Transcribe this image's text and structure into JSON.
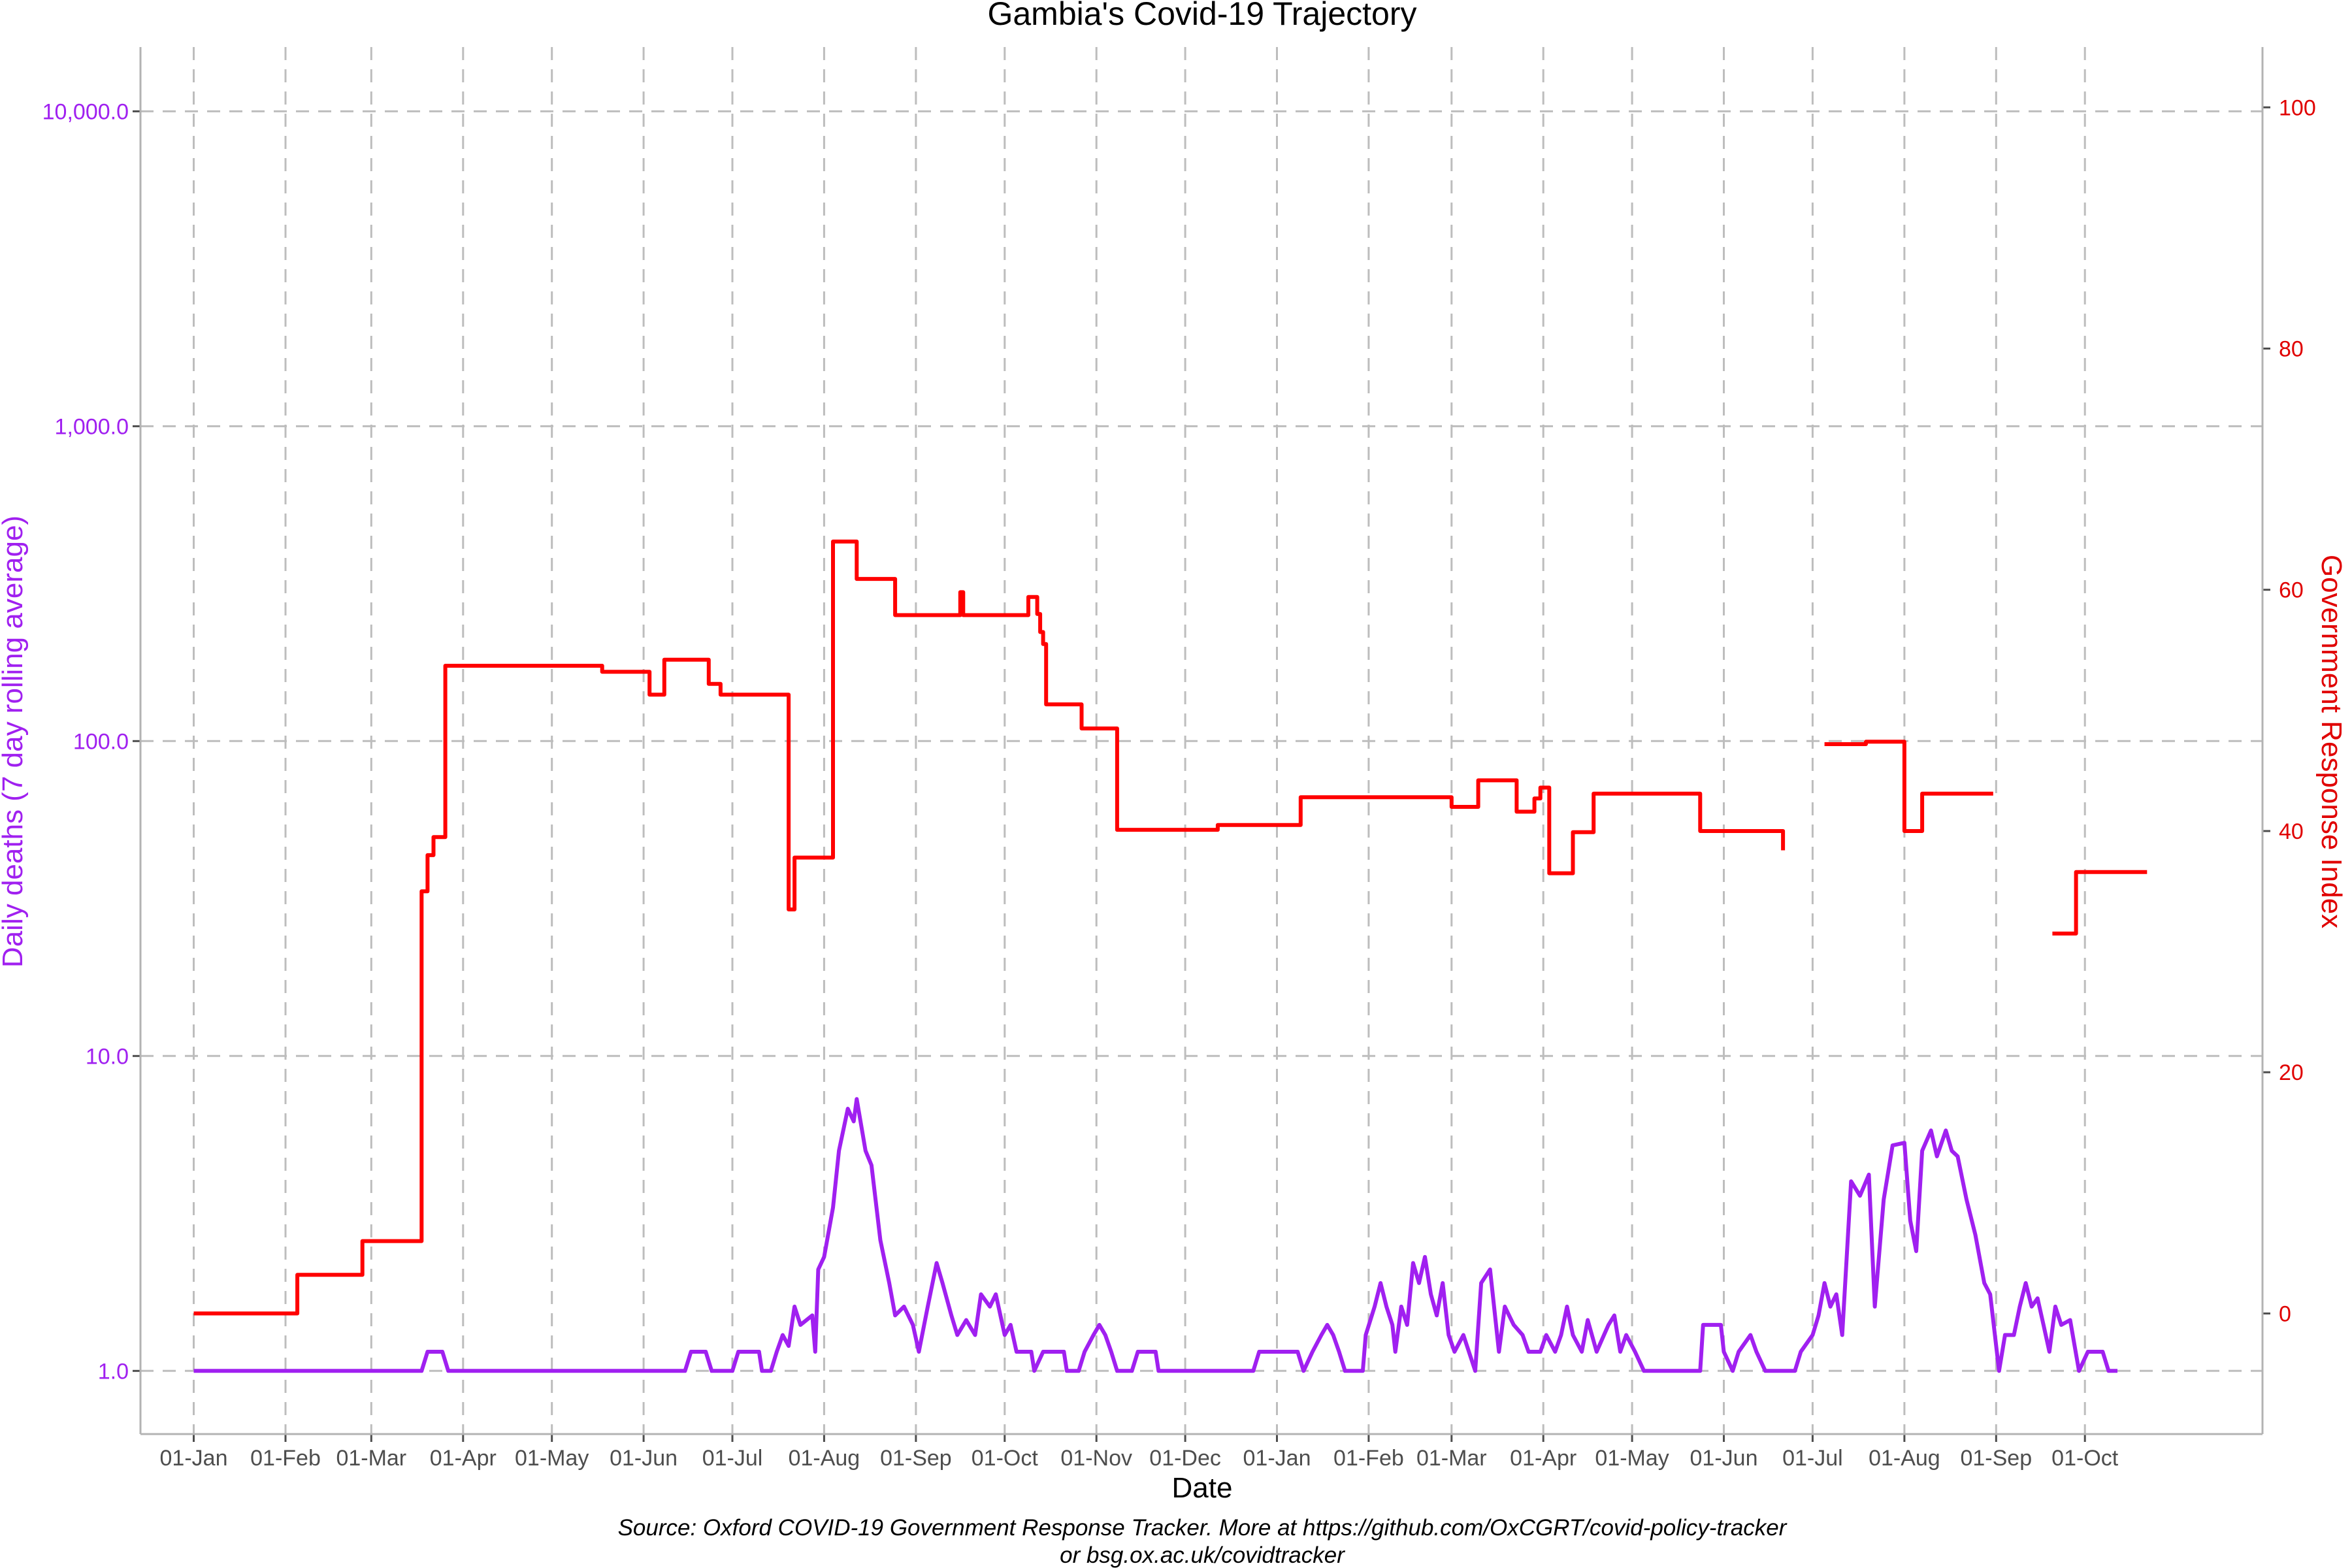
{
  "chart_data": {
    "type": "line",
    "title": "Gambia's Covid-19 Trajectory",
    "xlabel": "Date",
    "ylabel_left": "Daily deaths (7 day rolling average)",
    "ylabel_right": "Government Response Index",
    "caption_line1": "Source: Oxford COVID-19 Government Response Tracker. More at https://github.com/OxCGRT/covid-policy-tracker",
    "caption_line2": "or bsg.ox.ac.uk/covidtracker",
    "x_ticks": [
      "01-Jan",
      "01-Feb",
      "01-Mar",
      "01-Apr",
      "01-May",
      "01-Jun",
      "01-Jul",
      "01-Aug",
      "01-Sep",
      "01-Oct",
      "01-Nov",
      "01-Dec",
      "01-Jan",
      "01-Feb",
      "01-Mar",
      "01-Apr",
      "01-May",
      "01-Jun",
      "01-Jul",
      "01-Aug",
      "01-Sep",
      "01-Oct"
    ],
    "x_tick_dates": [
      "2020-01-01",
      "2020-02-01",
      "2020-03-01",
      "2020-04-01",
      "2020-05-01",
      "2020-06-01",
      "2020-07-01",
      "2020-08-01",
      "2020-09-01",
      "2020-10-01",
      "2020-11-01",
      "2020-12-01",
      "2021-01-01",
      "2021-02-01",
      "2021-03-01",
      "2021-04-01",
      "2021-05-01",
      "2021-06-01",
      "2021-07-01",
      "2021-08-01",
      "2021-09-01",
      "2021-10-01"
    ],
    "xlim": [
      "2019-12-14",
      "2021-11-30"
    ],
    "y_left": {
      "scale": "log10",
      "ticks": [
        1,
        10,
        100,
        1000,
        10000
      ],
      "tick_labels": [
        "1.0",
        "10.0",
        "100.0",
        "1,000.0",
        "10,000.0"
      ],
      "lim": [
        0.63,
        16000
      ]
    },
    "y_right": {
      "scale": "linear",
      "ticks": [
        0,
        20,
        40,
        60,
        80,
        100
      ],
      "tick_labels": [
        "0",
        "20",
        "40",
        "60",
        "80",
        "100"
      ],
      "lim": [
        -10,
        105
      ]
    },
    "grid": true,
    "colors": {
      "deaths": "#a020f0",
      "response": "#ff0000",
      "grid": "#bdbdbd",
      "axis": "#b3b3b3"
    },
    "series": [
      {
        "axis": "right",
        "type": "step",
        "color": "#ff0000",
        "points": [
          [
            "2020-01-01",
            0
          ],
          [
            "2020-02-05",
            3.2
          ],
          [
            "2020-02-27",
            6.0
          ],
          [
            "2020-03-18",
            35
          ],
          [
            "2020-03-20",
            38
          ],
          [
            "2020-03-22",
            39.5
          ],
          [
            "2020-03-26",
            53.7
          ],
          [
            "2020-05-18",
            53.2
          ],
          [
            "2020-06-03",
            51.3
          ],
          [
            "2020-06-08",
            54.2
          ],
          [
            "2020-06-23",
            52.2
          ],
          [
            "2020-06-27",
            51.3
          ],
          [
            "2020-07-20",
            33.5
          ],
          [
            "2020-07-22",
            37.8
          ],
          [
            "2020-08-04",
            64
          ],
          [
            "2020-08-12",
            60.9
          ],
          [
            "2020-08-25",
            57.9
          ],
          [
            "2020-09-16",
            59.8
          ],
          [
            "2020-09-17",
            57.9
          ],
          [
            "2020-10-09",
            59.4
          ],
          [
            "2020-10-12",
            58
          ],
          [
            "2020-10-13",
            56.5
          ],
          [
            "2020-10-14",
            55.5
          ],
          [
            "2020-10-15",
            50.5
          ],
          [
            "2020-10-27",
            48.5
          ],
          [
            "2020-11-08",
            40.1
          ],
          [
            "2020-12-12",
            40.5
          ],
          [
            "2021-01-09",
            42.8
          ],
          [
            "2021-03-01",
            42.0
          ],
          [
            "2021-03-10",
            44.2
          ],
          [
            "2021-03-23",
            41.6
          ],
          [
            "2021-03-29",
            42.7
          ],
          [
            "2021-03-31",
            43.6
          ],
          [
            "2021-04-03",
            36.5
          ],
          [
            "2021-04-11",
            39.9
          ],
          [
            "2021-04-18",
            43.1
          ],
          [
            "2021-05-24",
            40.0
          ],
          [
            "2021-06-21",
            38.4
          ],
          null,
          [
            "2021-07-05",
            47.2
          ],
          [
            "2021-07-19",
            47.4
          ],
          [
            "2021-08-01",
            40.0
          ],
          [
            "2021-08-07",
            43.1
          ],
          [
            "2021-08-31",
            43.1
          ],
          null,
          [
            "2021-09-20",
            31.5
          ],
          [
            "2021-09-28",
            36.6
          ],
          [
            "2021-10-22",
            36.6
          ]
        ]
      },
      {
        "axis": "left",
        "type": "line",
        "color": "#a020f0",
        "points": [
          [
            "2020-01-01",
            1.0
          ],
          [
            "2020-03-18",
            1.0
          ],
          [
            "2020-03-20",
            1.15
          ],
          [
            "2020-03-25",
            1.15
          ],
          [
            "2020-03-27",
            1.0
          ],
          [
            "2020-06-15",
            1.0
          ],
          [
            "2020-06-17",
            1.15
          ],
          [
            "2020-06-22",
            1.15
          ],
          [
            "2020-06-24",
            1.0
          ],
          [
            "2020-07-01",
            1.0
          ],
          [
            "2020-07-03",
            1.15
          ],
          [
            "2020-07-10",
            1.15
          ],
          [
            "2020-07-11",
            1.0
          ],
          [
            "2020-07-14",
            1.0
          ],
          [
            "2020-07-16",
            1.15
          ],
          [
            "2020-07-18",
            1.3
          ],
          [
            "2020-07-20",
            1.2
          ],
          [
            "2020-07-22",
            1.6
          ],
          [
            "2020-07-24",
            1.4
          ],
          [
            "2020-07-28",
            1.5
          ],
          [
            "2020-07-29",
            1.15
          ],
          [
            "2020-07-30",
            2.1
          ],
          [
            "2020-08-01",
            2.3
          ],
          [
            "2020-08-04",
            3.3
          ],
          [
            "2020-08-06",
            5.0
          ],
          [
            "2020-08-09",
            6.8
          ],
          [
            "2020-08-11",
            6.2
          ],
          [
            "2020-08-12",
            7.3
          ],
          [
            "2020-08-15",
            5.0
          ],
          [
            "2020-08-17",
            4.5
          ],
          [
            "2020-08-20",
            2.6
          ],
          [
            "2020-08-23",
            1.9
          ],
          [
            "2020-08-25",
            1.5
          ],
          [
            "2020-08-28",
            1.6
          ],
          [
            "2020-08-31",
            1.4
          ],
          [
            "2020-09-02",
            1.15
          ],
          [
            "2020-09-05",
            1.6
          ],
          [
            "2020-09-08",
            2.2
          ],
          [
            "2020-09-10",
            1.9
          ],
          [
            "2020-09-13",
            1.5
          ],
          [
            "2020-09-15",
            1.3
          ],
          [
            "2020-09-18",
            1.45
          ],
          [
            "2020-09-21",
            1.3
          ],
          [
            "2020-09-23",
            1.75
          ],
          [
            "2020-09-26",
            1.6
          ],
          [
            "2020-09-28",
            1.75
          ],
          [
            "2020-10-01",
            1.3
          ],
          [
            "2020-10-03",
            1.4
          ],
          [
            "2020-10-05",
            1.15
          ],
          [
            "2020-10-10",
            1.15
          ],
          [
            "2020-10-11",
            1.0
          ],
          [
            "2020-10-14",
            1.15
          ],
          [
            "2020-10-21",
            1.15
          ],
          [
            "2020-10-22",
            1.0
          ],
          [
            "2020-10-26",
            1.0
          ],
          [
            "2020-10-28",
            1.15
          ],
          [
            "2020-10-31",
            1.3
          ],
          [
            "2020-11-02",
            1.4
          ],
          [
            "2020-11-04",
            1.3
          ],
          [
            "2020-11-06",
            1.15
          ],
          [
            "2020-11-08",
            1.0
          ],
          [
            "2020-11-13",
            1.0
          ],
          [
            "2020-11-15",
            1.15
          ],
          [
            "2020-11-21",
            1.15
          ],
          [
            "2020-11-22",
            1.0
          ],
          [
            "2020-12-24",
            1.0
          ],
          [
            "2020-12-26",
            1.15
          ],
          [
            "2021-01-08",
            1.15
          ],
          [
            "2021-01-10",
            1.0
          ],
          [
            "2021-01-13",
            1.15
          ],
          [
            "2021-01-16",
            1.3
          ],
          [
            "2021-01-18",
            1.4
          ],
          [
            "2021-01-20",
            1.3
          ],
          [
            "2021-01-22",
            1.15
          ],
          [
            "2021-01-24",
            1.0
          ],
          [
            "2021-01-30",
            1.0
          ],
          [
            "2021-01-31",
            1.3
          ],
          [
            "2021-02-03",
            1.6
          ],
          [
            "2021-02-05",
            1.9
          ],
          [
            "2021-02-07",
            1.6
          ],
          [
            "2021-02-09",
            1.4
          ],
          [
            "2021-02-10",
            1.15
          ],
          [
            "2021-02-12",
            1.6
          ],
          [
            "2021-02-14",
            1.4
          ],
          [
            "2021-02-16",
            2.2
          ],
          [
            "2021-02-18",
            1.9
          ],
          [
            "2021-02-20",
            2.3
          ],
          [
            "2021-02-22",
            1.75
          ],
          [
            "2021-02-24",
            1.5
          ],
          [
            "2021-02-26",
            1.9
          ],
          [
            "2021-02-28",
            1.3
          ],
          [
            "2021-03-02",
            1.15
          ],
          [
            "2021-03-05",
            1.3
          ],
          [
            "2021-03-09",
            1.0
          ],
          [
            "2021-03-11",
            1.9
          ],
          [
            "2021-03-14",
            2.1
          ],
          [
            "2021-03-17",
            1.15
          ],
          [
            "2021-03-19",
            1.6
          ],
          [
            "2021-03-22",
            1.4
          ],
          [
            "2021-03-25",
            1.3
          ],
          [
            "2021-03-27",
            1.15
          ],
          [
            "2021-03-31",
            1.15
          ],
          [
            "2021-04-02",
            1.3
          ],
          [
            "2021-04-05",
            1.15
          ],
          [
            "2021-04-07",
            1.3
          ],
          [
            "2021-04-09",
            1.6
          ],
          [
            "2021-04-11",
            1.3
          ],
          [
            "2021-04-14",
            1.15
          ],
          [
            "2021-04-16",
            1.45
          ],
          [
            "2021-04-19",
            1.15
          ],
          [
            "2021-04-23",
            1.4
          ],
          [
            "2021-04-25",
            1.5
          ],
          [
            "2021-04-27",
            1.15
          ],
          [
            "2021-04-29",
            1.3
          ],
          [
            "2021-05-02",
            1.15
          ],
          [
            "2021-05-05",
            1.0
          ],
          [
            "2021-05-24",
            1.0
          ],
          [
            "2021-05-25",
            1.4
          ],
          [
            "2021-05-31",
            1.4
          ],
          [
            "2021-06-01",
            1.15
          ],
          [
            "2021-06-04",
            1.0
          ],
          [
            "2021-06-06",
            1.15
          ],
          [
            "2021-06-10",
            1.3
          ],
          [
            "2021-06-12",
            1.15
          ],
          [
            "2021-06-15",
            1.0
          ],
          [
            "2021-06-25",
            1.0
          ],
          [
            "2021-06-27",
            1.15
          ],
          [
            "2021-07-01",
            1.3
          ],
          [
            "2021-07-03",
            1.5
          ],
          [
            "2021-07-05",
            1.9
          ],
          [
            "2021-07-07",
            1.6
          ],
          [
            "2021-07-09",
            1.75
          ],
          [
            "2021-07-11",
            1.3
          ],
          [
            "2021-07-14",
            4.0
          ],
          [
            "2021-07-17",
            3.6
          ],
          [
            "2021-07-20",
            4.2
          ],
          [
            "2021-07-22",
            1.6
          ],
          [
            "2021-07-25",
            3.5
          ],
          [
            "2021-07-28",
            5.2
          ],
          [
            "2021-08-01",
            5.3
          ],
          [
            "2021-08-03",
            3.0
          ],
          [
            "2021-08-05",
            2.4
          ],
          [
            "2021-08-07",
            5.0
          ],
          [
            "2021-08-10",
            5.8
          ],
          [
            "2021-08-12",
            4.8
          ],
          [
            "2021-08-15",
            5.8
          ],
          [
            "2021-08-17",
            5.0
          ],
          [
            "2021-08-19",
            4.8
          ],
          [
            "2021-08-22",
            3.5
          ],
          [
            "2021-08-25",
            2.7
          ],
          [
            "2021-08-28",
            1.9
          ],
          [
            "2021-08-30",
            1.75
          ],
          [
            "2021-09-02",
            1.0
          ],
          [
            "2021-09-04",
            1.3
          ],
          [
            "2021-09-07",
            1.3
          ],
          [
            "2021-09-09",
            1.6
          ],
          [
            "2021-09-11",
            1.9
          ],
          [
            "2021-09-13",
            1.6
          ],
          [
            "2021-09-15",
            1.7
          ],
          [
            "2021-09-17",
            1.4
          ],
          [
            "2021-09-19",
            1.15
          ],
          [
            "2021-09-21",
            1.6
          ],
          [
            "2021-09-23",
            1.4
          ],
          [
            "2021-09-26",
            1.45
          ],
          [
            "2021-09-29",
            1.0
          ],
          [
            "2021-10-02",
            1.15
          ],
          [
            "2021-10-07",
            1.15
          ],
          [
            "2021-10-09",
            1.0
          ],
          [
            "2021-10-12",
            1.0
          ]
        ]
      }
    ]
  }
}
